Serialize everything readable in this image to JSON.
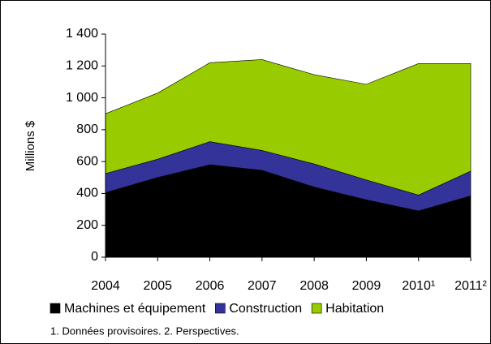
{
  "chart_data": {
    "type": "stacked_area",
    "y_label": "Millions $",
    "categories": [
      "2004",
      "2005",
      "2006",
      "2007",
      "2008",
      "2009",
      "2010¹",
      "2011²"
    ],
    "series": [
      {
        "name": "Machines et équipement",
        "color": "#000000",
        "values": [
          405,
          500,
          580,
          545,
          440,
          360,
          290,
          385
        ]
      },
      {
        "name": "Construction",
        "color": "#333399",
        "values": [
          120,
          115,
          145,
          125,
          145,
          125,
          100,
          155
        ]
      },
      {
        "name": "Habitation",
        "color": "#99cc00",
        "values": [
          375,
          415,
          495,
          570,
          560,
          600,
          825,
          675
        ]
      }
    ],
    "ylim": [
      0,
      1400
    ],
    "yticks": [
      0,
      200,
      400,
      600,
      800,
      {
        "value": 1000,
        "label": "1 000"
      },
      {
        "value": 1200,
        "label": "1 200"
      },
      {
        "value": 1400,
        "label": "1 400"
      }
    ],
    "note": "1. Données provisoires. 2. Perspectives."
  }
}
